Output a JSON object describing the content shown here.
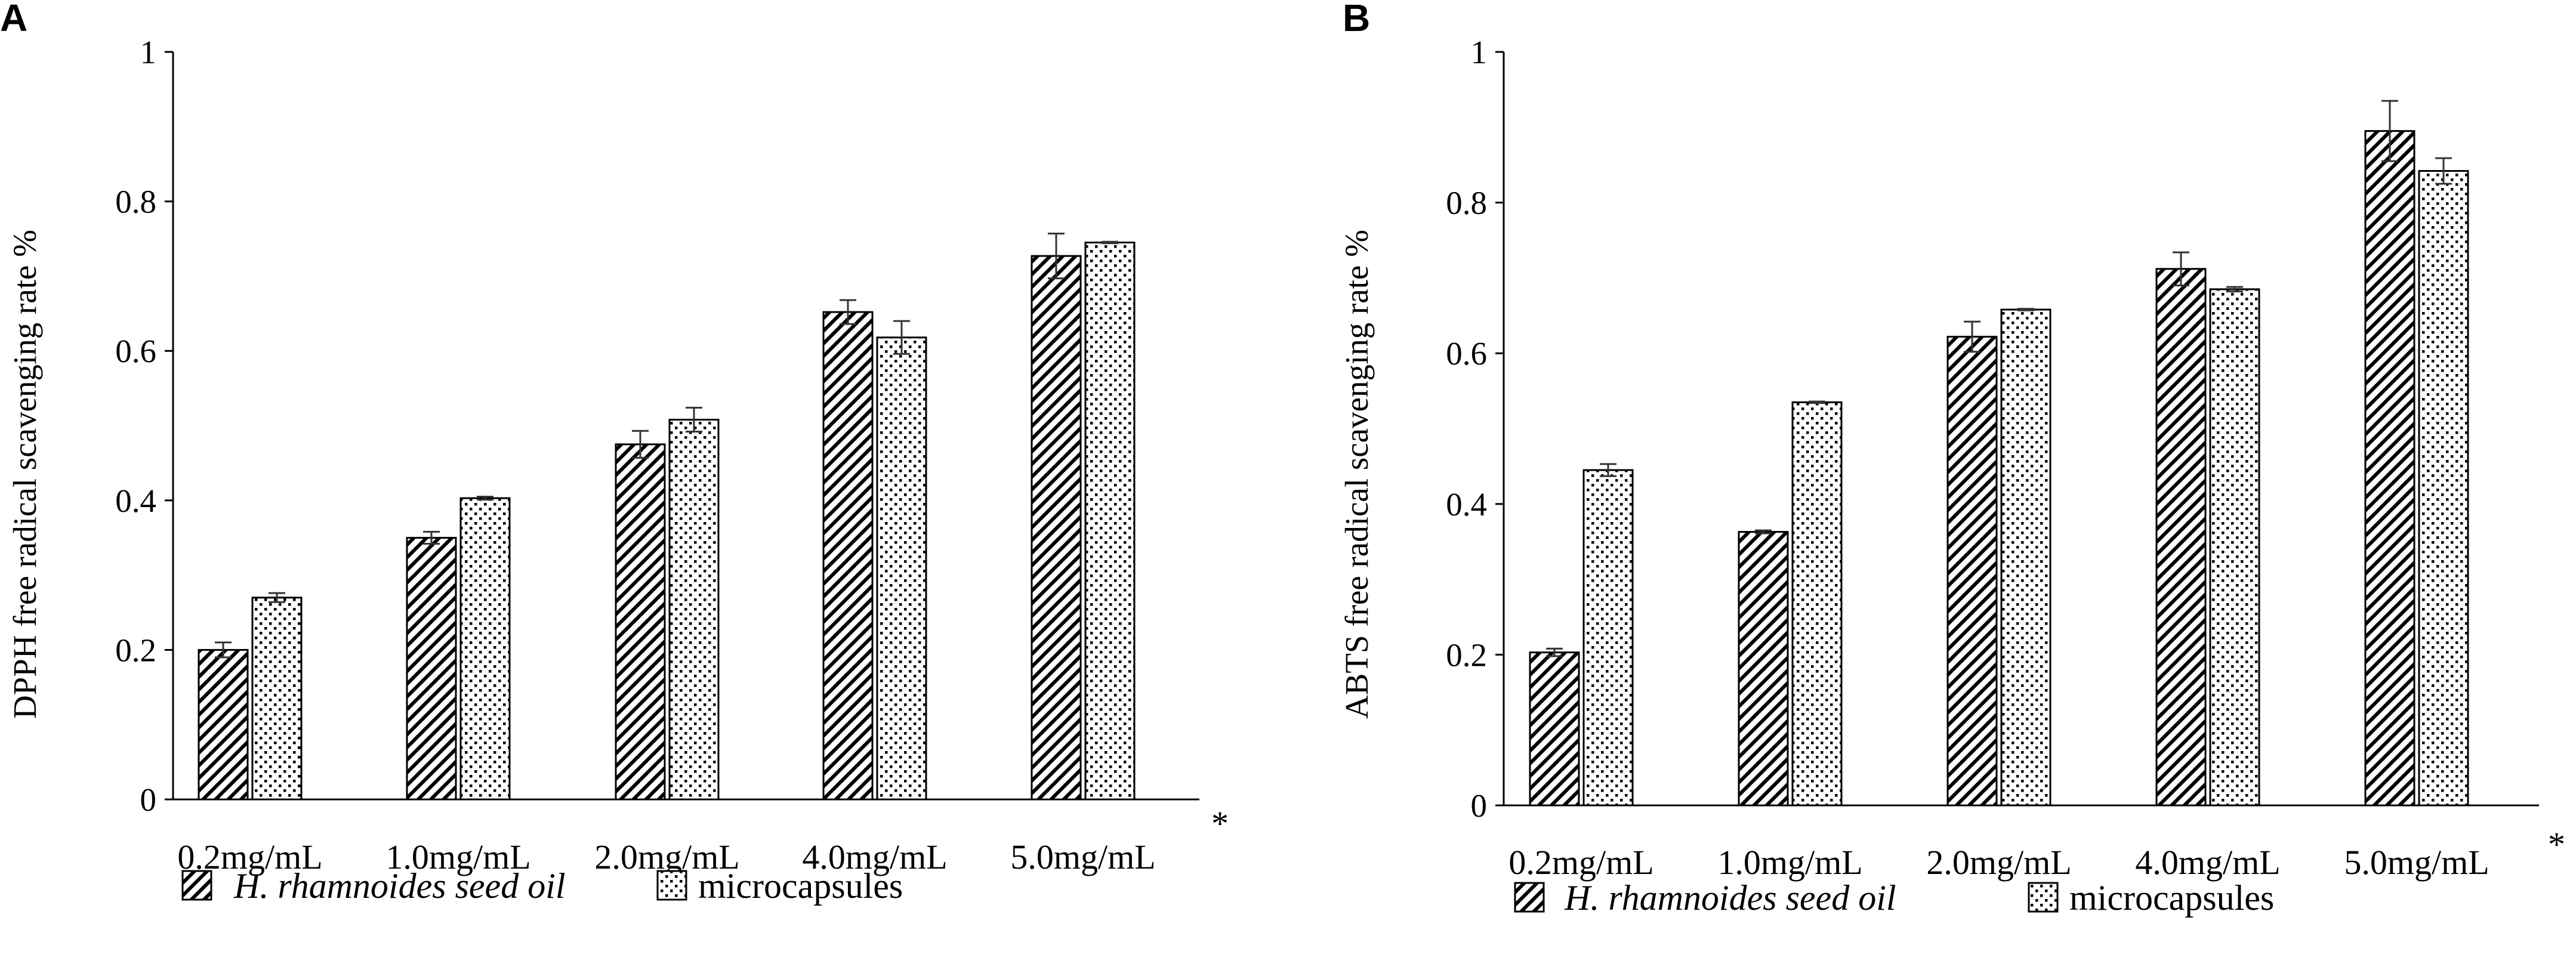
{
  "chart_data": [
    {
      "panel": "A",
      "type": "bar",
      "ylabel": "DPPH  free radical scavenging rate %",
      "ylim": [
        0,
        1
      ],
      "yticks": [
        "0",
        "0.2",
        "0.4",
        "0.6",
        "0.8",
        "1"
      ],
      "categories": [
        "0.2mg/mL",
        "1.0mg/mL",
        "2.0mg/mL",
        "4.0mg/mL",
        "5.0mg/mL"
      ],
      "annotation": "*",
      "series": [
        {
          "name": "H. rhamnoides seed oil",
          "pattern": "hatch",
          "values": [
            0.2,
            0.35,
            0.475,
            0.652,
            0.727
          ],
          "errors": [
            0.01,
            0.008,
            0.018,
            0.016,
            0.03
          ]
        },
        {
          "name": "microcapsules",
          "pattern": "dots",
          "values": [
            0.27,
            0.403,
            0.508,
            0.618,
            0.745
          ],
          "errors": [
            0.006,
            0.002,
            0.016,
            0.022,
            0.001
          ]
        }
      ],
      "legend": {
        "italic_label": "H. rhamnoides seed oil",
        "label": "microcapsules"
      }
    },
    {
      "panel": "B",
      "type": "bar",
      "ylabel": "ABTS free radical scavenging rate %",
      "ylim": [
        0,
        1
      ],
      "yticks": [
        "0",
        "0.2",
        "0.4",
        "0.6",
        "0.8",
        "1"
      ],
      "categories": [
        "0.2mg/mL",
        "1.0mg/mL",
        "2.0mg/mL",
        "4.0mg/mL",
        "5.0mg/mL"
      ],
      "annotation": "*",
      "series": [
        {
          "name": "H. rhamnoides seed oil",
          "pattern": "hatch",
          "values": [
            0.203,
            0.363,
            0.622,
            0.712,
            0.895
          ],
          "errors": [
            0.005,
            0.002,
            0.02,
            0.022,
            0.04
          ]
        },
        {
          "name": "microcapsules",
          "pattern": "dots",
          "values": [
            0.445,
            0.535,
            0.658,
            0.685,
            0.842
          ],
          "errors": [
            0.008,
            0.001,
            0.001,
            0.003,
            0.017
          ]
        }
      ],
      "legend": {
        "italic_label": "H. rhamnoides seed oil",
        "label": "microcapsules"
      }
    }
  ]
}
